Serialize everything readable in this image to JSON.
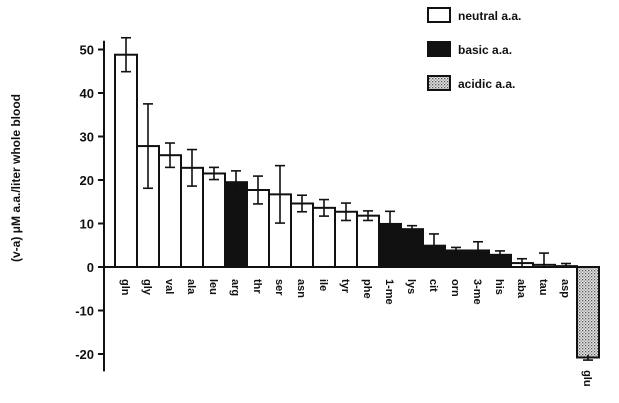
{
  "chart_data": {
    "type": "bar",
    "ylabel": "(v-a)   μM a.a./liter whole blood",
    "ylim": [
      -25,
      55
    ],
    "yticks": [
      50,
      40,
      30,
      20,
      10,
      0,
      -10,
      -20
    ],
    "ytick_labels": [
      "50",
      "40",
      "30",
      "20",
      "10",
      "0",
      "-10",
      "-20"
    ],
    "categories": [
      "gln",
      "gly",
      "val",
      "ala",
      "leu",
      "arg",
      "thr",
      "ser",
      "asn",
      "ile",
      "tyr",
      "phe",
      "1-me",
      "lys",
      "cit",
      "orn",
      "3-me",
      "his",
      "aba",
      "tau",
      "asp",
      "glu"
    ],
    "values": [
      48.8,
      27.8,
      25.7,
      22.8,
      21.5,
      19.5,
      17.7,
      16.7,
      14.6,
      13.6,
      12.7,
      11.8,
      9.9,
      8.7,
      4.9,
      3.8,
      3.8,
      2.8,
      0.9,
      0.5,
      0.2,
      -20.8
    ],
    "errors": [
      3.9,
      9.7,
      2.8,
      4.2,
      1.4,
      2.6,
      3.2,
      6.6,
      1.9,
      1.9,
      2.0,
      1.1,
      2.9,
      0.8,
      2.7,
      0.7,
      2.0,
      0.9,
      1.0,
      2.7,
      0.6,
      0.6
    ],
    "groups": [
      "neutral",
      "neutral",
      "neutral",
      "neutral",
      "neutral",
      "basic",
      "neutral",
      "neutral",
      "neutral",
      "neutral",
      "neutral",
      "neutral",
      "basic",
      "basic",
      "basic",
      "basic",
      "basic",
      "basic",
      "neutral",
      "neutral",
      "acidic",
      "acidic"
    ],
    "legend": [
      {
        "key": "neutral",
        "label": "neutral a.a.",
        "fill": "#ffffff"
      },
      {
        "key": "basic",
        "label": "basic a.a.",
        "fill": "#111111"
      },
      {
        "key": "acidic",
        "label": "acidic a.a.",
        "fill": "#cccccc"
      }
    ],
    "legend_position": "top-right",
    "grid": false
  }
}
